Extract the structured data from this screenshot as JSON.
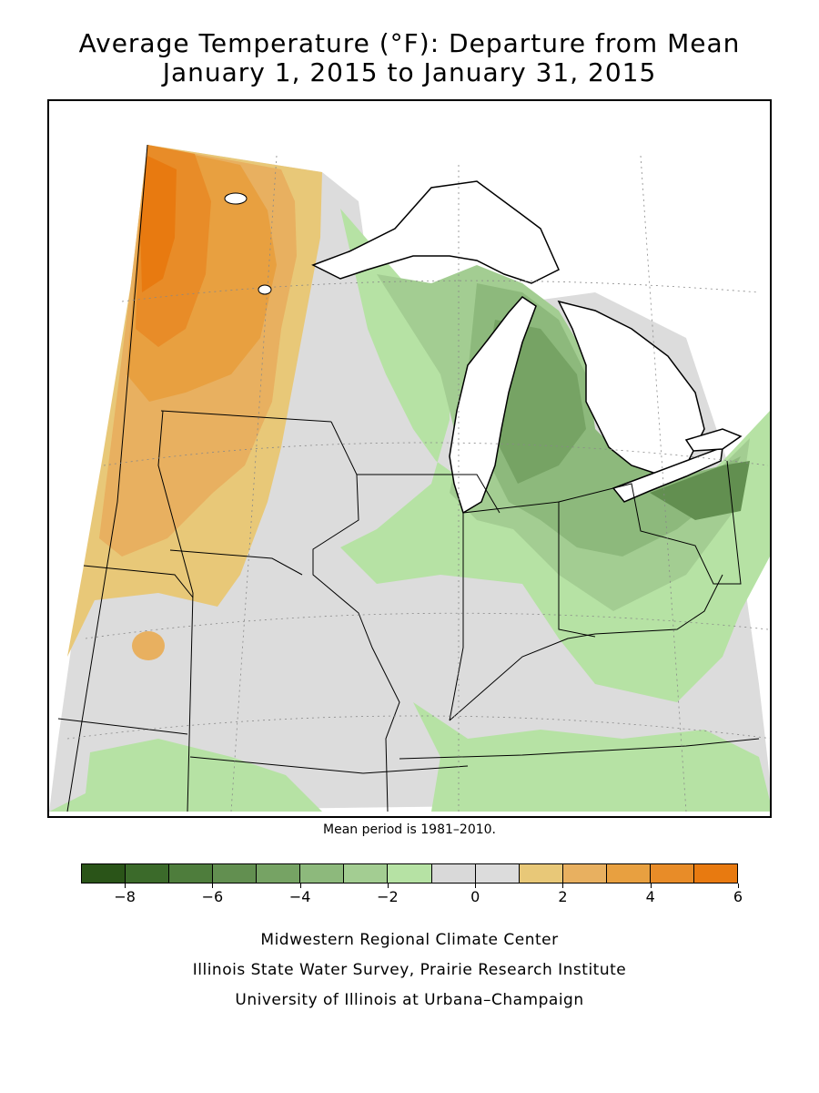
{
  "title": {
    "line1": "Average Temperature (°F): Departure from Mean",
    "line2": "January 1, 2015 to January 31, 2015"
  },
  "note": "Mean period is 1981–2010.",
  "legend": {
    "ticks": [
      "−8",
      "−6",
      "−4",
      "−2",
      "0",
      "2",
      "4",
      "6"
    ],
    "colors": [
      "#2a5418",
      "#3b6a2a",
      "#4e7d3c",
      "#628f50",
      "#76a364",
      "#8db97c",
      "#a3cd92",
      "#b6e2a4",
      "#d9d9d9",
      "#dcdcdc",
      "#e8c878",
      "#e8b060",
      "#e8a040",
      "#e88c28",
      "#e87a10"
    ]
  },
  "credits": {
    "line1": "Midwestern Regional Climate Center",
    "line2": "Illinois State Water Survey, Prairie Research Institute",
    "line3": "University of Illinois at Urbana–Champaign"
  }
}
